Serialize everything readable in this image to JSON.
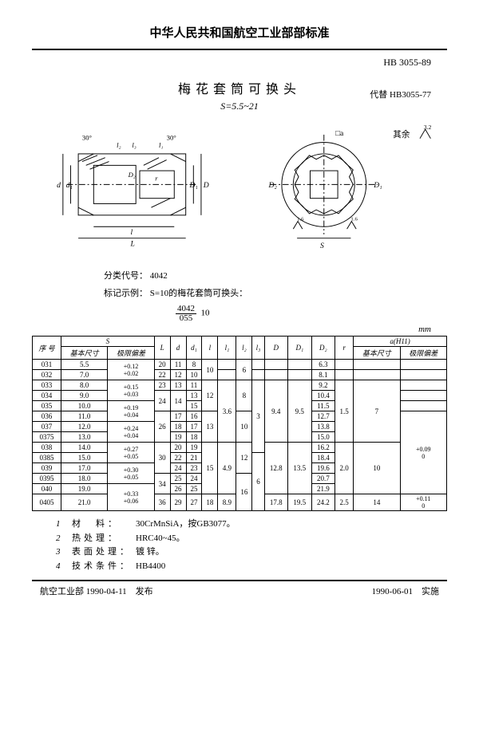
{
  "header": {
    "org_title": "中华人民共和国航空工业部部标准",
    "std_number": "HB 3055-89",
    "doc_title": "梅花套筒可换头",
    "replaces": "代替 HB3055-77",
    "s_range": "S=5.5~21"
  },
  "drawing": {
    "angle": "30°",
    "dim_l2": "l₂",
    "dim_l3": "l₃",
    "dim_l1": "l₁",
    "dim_d": "d",
    "dim_d1": "d₁",
    "dim_D2": "D₂",
    "dim_r": "r",
    "dim_D": "D",
    "dim_D1": "D₁",
    "dim_l": "l",
    "dim_L": "L",
    "square_a": "□a",
    "other": "其余",
    "tol1": "1.6",
    "tol2": "3.2",
    "dim_S": "S"
  },
  "mid": {
    "class_label": "分类代号：",
    "class_val": "4042",
    "mark_label": "标记示例：",
    "mark_text": "S=10的梅花套筒可换头：",
    "frac_top": "4042",
    "frac_bot": "055",
    "frac_after": "10",
    "unit": "mm"
  },
  "table": {
    "headers": {
      "seq": "序 号",
      "S": "S",
      "basic": "基本尺寸",
      "tol": "极限偏差",
      "L": "L",
      "d": "d",
      "d1": "d₁",
      "l": "l",
      "l1": "l₁",
      "l2": "l₂",
      "l3": "l₃",
      "D": "D",
      "D1": "D₁",
      "D2": "D₂",
      "r": "r",
      "a": "a(H11)"
    },
    "rows": [
      {
        "seq": "031",
        "s": "5.5",
        "stol": "+0.12\n+0.02",
        "L": "20",
        "d": "11",
        "d1": "8",
        "l": "10",
        "l1": "",
        "l2": "6",
        "l3": "",
        "D": "",
        "D1": "",
        "D2": "6.3",
        "r": "",
        "ab": "",
        "at": ""
      },
      {
        "seq": "032",
        "s": "7.0",
        "stol": "",
        "L": "22",
        "d": "12",
        "d1": "10",
        "l": "",
        "l1": "",
        "l2": "",
        "l3": "",
        "D": "",
        "D1": "",
        "D2": "8.1",
        "r": "",
        "ab": "",
        "at": ""
      },
      {
        "seq": "033",
        "s": "8.0",
        "stol": "+0.15\n+0.03",
        "L": "23",
        "d": "13",
        "d1": "11",
        "l": "12",
        "l1": "3.6",
        "l2": "8",
        "l3": "3",
        "D": "9.4",
        "D1": "9.5",
        "D2": "9.2",
        "r": "1.5",
        "ab": "7",
        "at": ""
      },
      {
        "seq": "034",
        "s": "9.0",
        "stol": "",
        "L": "24",
        "d": "14",
        "d1": "13",
        "l": "",
        "l1": "",
        "l2": "",
        "l3": "",
        "D": "",
        "D1": "",
        "D2": "10.4",
        "r": "",
        "ab": "",
        "at": ""
      },
      {
        "seq": "035",
        "s": "10.0",
        "stol": "+0.19\n+0.04",
        "L": "",
        "d": "",
        "d1": "15",
        "l": "",
        "l1": "",
        "l2": "",
        "l3": "",
        "D": "",
        "D1": "",
        "D2": "11.5",
        "r": "",
        "ab": "",
        "at": ""
      },
      {
        "seq": "036",
        "s": "11.0",
        "stol": "",
        "L": "26",
        "d": "17",
        "d1": "16",
        "l": "13",
        "l1": "",
        "l2": "10",
        "l3": "",
        "D": "",
        "D1": "",
        "D2": "12.7",
        "r": "",
        "ab": "",
        "at": "+0.09\n0"
      },
      {
        "seq": "037",
        "s": "12.0",
        "stol": "+0.24\n+0.04",
        "L": "",
        "d": "18",
        "d1": "17",
        "l": "",
        "l1": "",
        "l2": "",
        "l3": "",
        "D": "",
        "D1": "",
        "D2": "13.8",
        "r": "",
        "ab": "",
        "at": ""
      },
      {
        "seq": "0375",
        "s": "13.0",
        "stol": "",
        "L": "",
        "d": "19",
        "d1": "18",
        "l": "",
        "l1": "",
        "l2": "",
        "l3": "",
        "D": "",
        "D1": "",
        "D2": "15.0",
        "r": "",
        "ab": "",
        "at": ""
      },
      {
        "seq": "038",
        "s": "14.0",
        "stol": "+0.27\n+0.05",
        "L": "30",
        "d": "20",
        "d1": "19",
        "l": "15",
        "l1": "4.9",
        "l2": "12",
        "l3": "",
        "D": "12.8",
        "D1": "13.5",
        "D2": "16.2",
        "r": "2.0",
        "ab": "10",
        "at": ""
      },
      {
        "seq": "0385",
        "s": "15.0",
        "stol": "",
        "L": "",
        "d": "22",
        "d1": "21",
        "l": "",
        "l1": "",
        "l2": "",
        "l3": "6",
        "D": "",
        "D1": "",
        "D2": "18.4",
        "r": "",
        "ab": "",
        "at": ""
      },
      {
        "seq": "039",
        "s": "17.0",
        "stol": "+0.30\n+0.05",
        "L": "",
        "d": "24",
        "d1": "23",
        "l": "",
        "l1": "",
        "l2": "",
        "l3": "",
        "D": "",
        "D1": "",
        "D2": "19.6",
        "r": "",
        "ab": "",
        "at": ""
      },
      {
        "seq": "0395",
        "s": "18.0",
        "stol": "",
        "L": "34",
        "d": "25",
        "d1": "24",
        "l": "",
        "l1": "",
        "l2": "16",
        "l3": "",
        "D": "",
        "D1": "",
        "D2": "20.7",
        "r": "",
        "ab": "",
        "at": ""
      },
      {
        "seq": "040",
        "s": "19.0",
        "stol": "+0.33\n+0.06",
        "L": "",
        "d": "26",
        "d1": "25",
        "l": "",
        "l1": "",
        "l2": "",
        "l3": "",
        "D": "",
        "D1": "",
        "D2": "21.9",
        "r": "",
        "ab": "",
        "at": ""
      },
      {
        "seq": "0405",
        "s": "21.0",
        "stol": "",
        "L": "36",
        "d": "29",
        "d1": "27",
        "l": "18",
        "l1": "8.9",
        "l2": "",
        "l3": "",
        "D": "17.8",
        "D1": "19.5",
        "D2": "24.2",
        "r": "2.5",
        "ab": "14",
        "at": "+0.11\n0"
      }
    ]
  },
  "notes": [
    {
      "n": "1",
      "label": "材　料：",
      "val": "30CrMnSiA，按GB3077。"
    },
    {
      "n": "2",
      "label": "热处理：",
      "val": "HRC40~45。"
    },
    {
      "n": "3",
      "label": "表面处理：",
      "val": "镀 锌。"
    },
    {
      "n": "4",
      "label": "技术条件：",
      "val": "HB4400"
    }
  ],
  "footer": {
    "left": "航空工业部 1990-04-11　发布",
    "right": "1990-06-01　实施"
  },
  "colors": {
    "line": "#000000",
    "bg": "#ffffff"
  }
}
